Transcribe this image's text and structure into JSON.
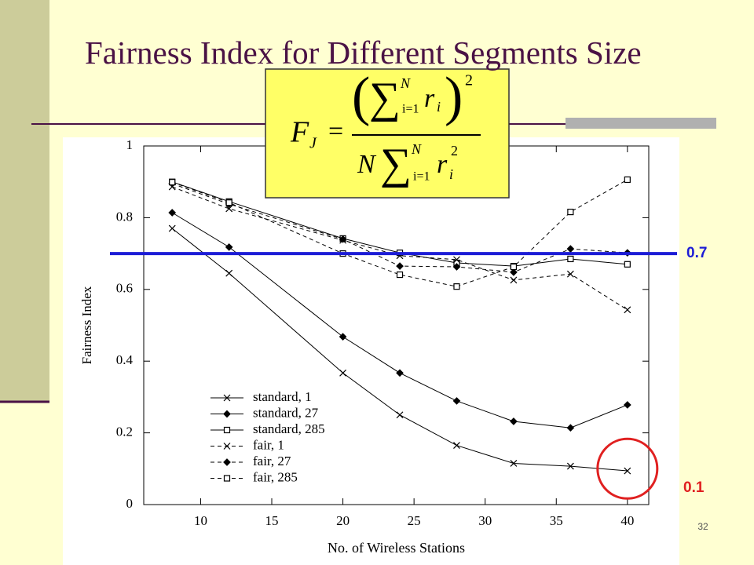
{
  "slide": {
    "title": "Fairness Index for Different Segments Size",
    "page_number": "32",
    "formula": {
      "lhs": "F",
      "lhs_sub": "J",
      "equals": "=",
      "sum": "∑",
      "sum_upper": "N",
      "sum_lower": "i=1",
      "var": "r",
      "var_sub": "i",
      "power": "2",
      "factor": "N"
    }
  },
  "chart_data": {
    "type": "line",
    "x_label": "No. of Wireless Stations",
    "y_label": "Fairness Index",
    "x": [
      8,
      12,
      20,
      24,
      28,
      32,
      36,
      40
    ],
    "xlim": [
      6,
      41.5
    ],
    "xticks": [
      10,
      15,
      20,
      25,
      30,
      35,
      40
    ],
    "ylim": [
      0,
      1
    ],
    "yticks": [
      0,
      0.2,
      0.4,
      0.6,
      0.8,
      1
    ],
    "grid": false,
    "series": [
      {
        "name": "standard, 1",
        "color": "#000000",
        "marker": "x",
        "dash": "solid",
        "values": [
          0.77,
          0.645,
          0.367,
          0.25,
          0.165,
          0.115,
          0.107,
          0.094
        ]
      },
      {
        "name": "standard, 27",
        "color": "#000000",
        "marker": "diamond",
        "dash": "solid",
        "values": [
          0.814,
          0.718,
          0.468,
          0.367,
          0.289,
          0.232,
          0.214,
          0.278
        ]
      },
      {
        "name": "standard, 285",
        "color": "#000000",
        "marker": "square",
        "dash": "solid",
        "values": [
          0.9,
          0.845,
          0.742,
          0.702,
          0.674,
          0.665,
          0.685,
          0.67
        ]
      },
      {
        "name": "fair, 1",
        "color": "#000000",
        "marker": "x",
        "dash": "dashed",
        "values": [
          0.886,
          0.825,
          0.737,
          0.694,
          0.683,
          0.626,
          0.643,
          0.543
        ]
      },
      {
        "name": "fair,  27",
        "color": "#000000",
        "marker": "diamond",
        "dash": "dashed",
        "values": [
          0.895,
          0.838,
          0.74,
          0.665,
          0.663,
          0.648,
          0.713,
          0.702
        ]
      },
      {
        "name": "fair,  285",
        "color": "#000000",
        "marker": "square",
        "dash": "dashed",
        "values": [
          0.899,
          0.842,
          0.7,
          0.641,
          0.608,
          0.663,
          0.816,
          0.906
        ]
      }
    ],
    "reference_line": {
      "value": 0.7,
      "label": "0.7",
      "color": "#1c1cd6"
    },
    "highlight": {
      "x": 40,
      "y": 0.1,
      "label": "0.1",
      "color": "#e02020"
    }
  }
}
